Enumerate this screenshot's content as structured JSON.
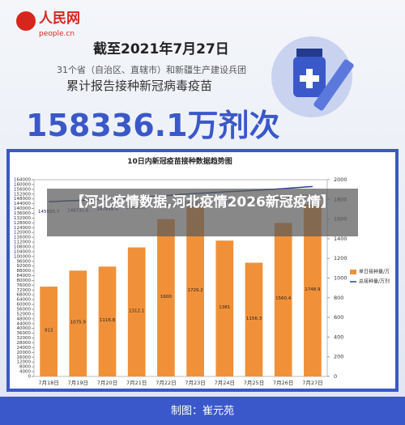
{
  "header": {
    "logo": "人民网",
    "logo_sub": "people.cn",
    "date": "截至2021年7月27日",
    "scope": "31个省（自治区、直辖市）和新疆生产建设兵团",
    "subject": "累计报告接种新冠病毒疫苗",
    "total": "158336.1万剂次"
  },
  "chart_data": {
    "type": "bar",
    "title": "10日内新冠疫苗接种数据趋势图",
    "categories": [
      "7月18日",
      "7月19日",
      "7月20日",
      "7月21日",
      "7月22日",
      "7月23日",
      "7月24日",
      "7月25日",
      "7月26日",
      "7月27日"
    ],
    "series": [
      {
        "name": "单日接种量/万",
        "type": "bar",
        "axis": "y2",
        "color": "#f0913a",
        "values": [
          913,
          1075.9,
          1116.8,
          1312.1,
          1600,
          1729.2,
          1381,
          1156.3,
          1560.4,
          1748.9
        ]
      },
      {
        "name": "总接种量/万剂",
        "type": "line",
        "color": "#2b3f8f",
        "values": [
          145655.7,
          146731.6,
          147848.4,
          149160.5,
          150760.5,
          152489.7,
          153870.7,
          155027.0,
          156587.4,
          158336.1
        ]
      }
    ],
    "ylim": [
      0,
      164000
    ],
    "yticks": [
      0,
      4000,
      8000,
      12000,
      16000,
      20000,
      24000,
      28000,
      32000,
      36000,
      40000,
      44000,
      48000,
      52000,
      56000,
      60000,
      64000,
      68000,
      72000,
      76000,
      80000,
      84000,
      88000,
      92000,
      96000,
      100000,
      104000,
      108000,
      112000,
      116000,
      120000,
      124000,
      128000,
      132000,
      136000,
      140000,
      144000,
      148000,
      152000,
      156000,
      160000,
      164000
    ],
    "y2lim": [
      0,
      2000
    ],
    "y2ticks": [
      0,
      200,
      400,
      600,
      800,
      1000,
      1200,
      1400,
      1600,
      1800,
      2000
    ],
    "legend": "right"
  },
  "overlay": "【河北疫情数据,河北疫情2026新冠疫情】",
  "footer": "制图：崔元苑"
}
